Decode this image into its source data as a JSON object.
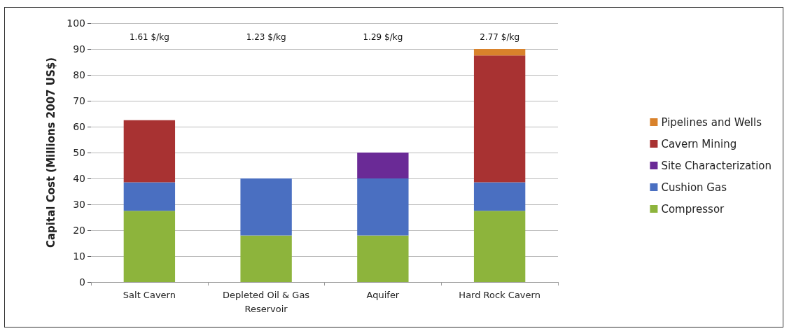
{
  "chart_data": {
    "type": "bar",
    "stacked": true,
    "ylabel": "Capital Cost (Millions 2007 US$)",
    "categories": [
      "Salt Cavern",
      "Depleted Oil & Gas\nReservoir",
      "Aquifer",
      "Hard Rock Cavern"
    ],
    "series": [
      {
        "name": "Compressor",
        "color": "#8db43c",
        "values": [
          27.5,
          18,
          18,
          27.5
        ]
      },
      {
        "name": "Cushion Gas",
        "color": "#4a6fc1",
        "values": [
          11,
          22,
          22,
          11
        ]
      },
      {
        "name": "Site Characterization",
        "color": "#6a2a96",
        "values": [
          null,
          null,
          10,
          null
        ]
      },
      {
        "name": "Cavern Mining",
        "color": "#a83232",
        "values": [
          24,
          null,
          null,
          49
        ]
      },
      {
        "name": "Pipelines and Wells",
        "color": "#d9822b",
        "values": [
          null,
          null,
          null,
          2.5
        ]
      }
    ],
    "annotations": [
      "1.61 $/kg",
      "1.23 $/kg",
      "1.29 $/kg",
      "2.77 $/kg"
    ],
    "ylim": [
      0,
      100
    ],
    "yticks": [
      0,
      10,
      20,
      30,
      40,
      50,
      60,
      70,
      80,
      90,
      100
    ],
    "grid": "y",
    "legend": "right"
  }
}
